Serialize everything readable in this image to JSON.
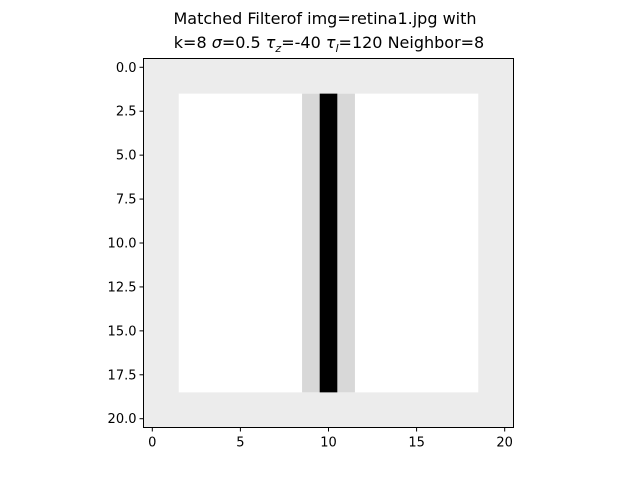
{
  "chart_data": {
    "type": "heatmap",
    "title_line1": "Matched Filterof img=retina1.jpg with",
    "title_line2_parts": [
      {
        "text": "k=8 ",
        "style": "normal"
      },
      {
        "text": "σ",
        "style": "italic"
      },
      {
        "text": "=0.5 ",
        "style": "normal"
      },
      {
        "text": "τ",
        "style": "italic"
      },
      {
        "text": "z",
        "style": "sub"
      },
      {
        "text": "=-40 ",
        "style": "normal"
      },
      {
        "text": "τ",
        "style": "italic"
      },
      {
        "text": "l",
        "style": "sub"
      },
      {
        "text": "=120 Neighbor=8",
        "style": "normal"
      }
    ],
    "xlabel": "",
    "ylabel": "",
    "grid": false,
    "colormap": "gray",
    "rows": 21,
    "cols": 21,
    "xlim": [
      -0.5,
      20.5
    ],
    "ylim": [
      20.5,
      -0.5
    ],
    "x_ticks": [
      0,
      5,
      10,
      15,
      20
    ],
    "x_tick_labels": [
      "0",
      "5",
      "10",
      "15",
      "20"
    ],
    "y_ticks": [
      0.0,
      2.5,
      5.0,
      7.5,
      10.0,
      12.5,
      15.0,
      17.5,
      20.0
    ],
    "y_tick_labels": [
      "0.0",
      "2.5",
      "5.0",
      "7.5",
      "10.0",
      "12.5",
      "15.0",
      "17.5",
      "20.0"
    ],
    "background_color": "#ececec",
    "regions": [
      {
        "name": "inner-white-region",
        "cols": [
          2,
          18
        ],
        "rows": [
          2,
          18
        ],
        "color": "#ffffff"
      },
      {
        "name": "light-gray-band",
        "cols": [
          9,
          11
        ],
        "rows": [
          2,
          18
        ],
        "color": "#d8d8d8"
      },
      {
        "name": "black-vessel-line",
        "cols": [
          10,
          10
        ],
        "rows": [
          2,
          18
        ],
        "color": "#000000"
      }
    ]
  }
}
